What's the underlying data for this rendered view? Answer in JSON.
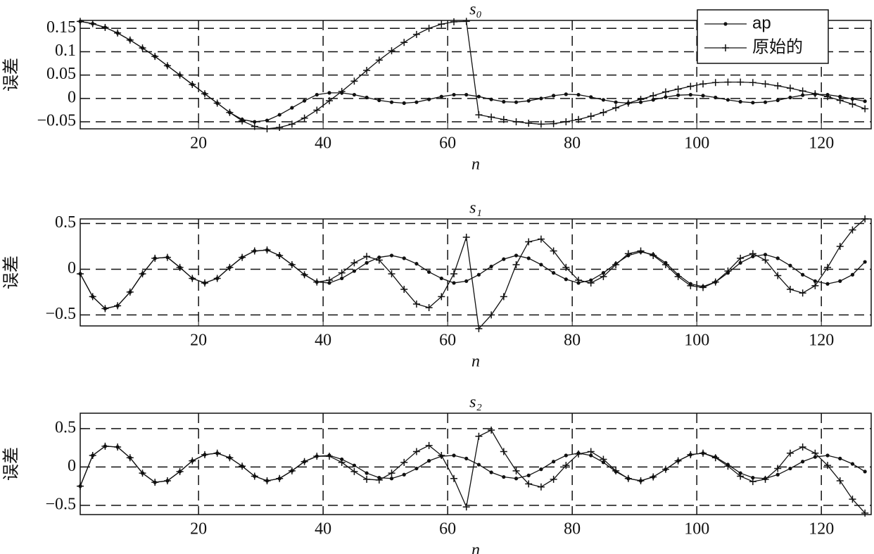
{
  "chart_data": [
    {
      "type": "line",
      "title": "s₀",
      "xlabel": "n",
      "ylabel": "误差",
      "legend": "upper right",
      "grid": true,
      "xlim": [
        1,
        128
      ],
      "ylim": [
        -0.065,
        0.167
      ],
      "xticks": [
        20,
        40,
        60,
        80,
        100,
        120
      ],
      "yticks": [
        {
          "value": -0.05,
          "label": "−0.05"
        },
        0,
        0.05,
        0.1,
        0.15
      ],
      "x": [
        1,
        3,
        5,
        7,
        9,
        11,
        13,
        15,
        17,
        19,
        21,
        23,
        25,
        27,
        29,
        31,
        33,
        35,
        37,
        39,
        41,
        43,
        45,
        47,
        49,
        51,
        53,
        55,
        57,
        59,
        61,
        63,
        65,
        67,
        69,
        71,
        73,
        75,
        77,
        79,
        81,
        83,
        85,
        87,
        89,
        91,
        93,
        95,
        97,
        99,
        101,
        103,
        105,
        107,
        109,
        111,
        113,
        115,
        117,
        119,
        121,
        123,
        125,
        127
      ],
      "series": [
        {
          "name": "ap",
          "color": "#111111",
          "marker": "dot",
          "values": [
            0.165,
            0.16,
            0.152,
            0.14,
            0.125,
            0.108,
            0.09,
            0.07,
            0.05,
            0.03,
            0.01,
            -0.01,
            -0.03,
            -0.045,
            -0.05,
            -0.047,
            -0.035,
            -0.02,
            -0.005,
            0.008,
            0.012,
            0.012,
            0.008,
            0.002,
            -0.004,
            -0.008,
            -0.01,
            -0.008,
            -0.002,
            0.004,
            0.008,
            0.008,
            0.004,
            -0.002,
            -0.007,
            -0.008,
            -0.005,
            0,
            0.006,
            0.009,
            0.008,
            0.003,
            -0.003,
            -0.008,
            -0.01,
            -0.008,
            -0.003,
            0.003,
            0.007,
            0.008,
            0.006,
            0.002,
            -0.003,
            -0.007,
            -0.009,
            -0.008,
            -0.004,
            0.002,
            0.007,
            0.009,
            0.008,
            0.004,
            -0.001,
            -0.006
          ]
        },
        {
          "name": "原始的",
          "color": "#111111",
          "marker": "plus",
          "values": [
            0.165,
            0.16,
            0.152,
            0.14,
            0.125,
            0.108,
            0.09,
            0.07,
            0.05,
            0.03,
            0.01,
            -0.01,
            -0.03,
            -0.048,
            -0.06,
            -0.065,
            -0.062,
            -0.055,
            -0.042,
            -0.025,
            -0.005,
            0.015,
            0.037,
            0.06,
            0.082,
            0.102,
            0.12,
            0.137,
            0.15,
            0.159,
            0.164,
            0.165,
            -0.035,
            -0.04,
            -0.045,
            -0.05,
            -0.053,
            -0.055,
            -0.054,
            -0.05,
            -0.045,
            -0.038,
            -0.03,
            -0.02,
            -0.01,
            -0.002,
            0.006,
            0.014,
            0.02,
            0.026,
            0.031,
            0.034,
            0.035,
            0.035,
            0.034,
            0.031,
            0.027,
            0.022,
            0.016,
            0.01,
            0.004,
            -0.004,
            -0.012,
            -0.022
          ]
        }
      ]
    },
    {
      "type": "line",
      "title": "s₁",
      "xlabel": "n",
      "ylabel": "误差",
      "grid": true,
      "xlim": [
        1,
        128
      ],
      "ylim": [
        -0.62,
        0.55
      ],
      "xticks": [
        20,
        40,
        60,
        80,
        100,
        120
      ],
      "yticks": [
        {
          "value": -0.5,
          "label": "−0.5"
        },
        0,
        0.5
      ],
      "x": [
        1,
        3,
        5,
        7,
        9,
        11,
        13,
        15,
        17,
        19,
        21,
        23,
        25,
        27,
        29,
        31,
        33,
        35,
        37,
        39,
        41,
        43,
        45,
        47,
        49,
        51,
        53,
        55,
        57,
        59,
        61,
        63,
        65,
        67,
        69,
        71,
        73,
        75,
        77,
        79,
        81,
        83,
        85,
        87,
        89,
        91,
        93,
        95,
        97,
        99,
        101,
        103,
        105,
        107,
        109,
        111,
        113,
        115,
        117,
        119,
        121,
        123,
        125,
        127
      ],
      "series": [
        {
          "color": "#111111",
          "marker": "dot",
          "values": [
            -0.05,
            -0.3,
            -0.43,
            -0.4,
            -0.25,
            -0.05,
            0.12,
            0.13,
            0.02,
            -0.1,
            -0.15,
            -0.1,
            0.02,
            0.13,
            0.2,
            0.21,
            0.15,
            0.05,
            -0.06,
            -0.14,
            -0.15,
            -0.1,
            -0.02,
            0.07,
            0.13,
            0.15,
            0.12,
            0.06,
            -0.03,
            -0.1,
            -0.15,
            -0.13,
            -0.06,
            0.03,
            0.11,
            0.15,
            0.12,
            0.05,
            -0.04,
            -0.11,
            -0.15,
            -0.12,
            -0.04,
            0.06,
            0.15,
            0.19,
            0.16,
            0.07,
            -0.06,
            -0.16,
            -0.19,
            -0.14,
            -0.04,
            0.07,
            0.14,
            0.16,
            0.12,
            0.04,
            -0.06,
            -0.13,
            -0.16,
            -0.13,
            -0.06,
            0.08
          ]
        },
        {
          "color": "#111111",
          "marker": "plus",
          "values": [
            -0.05,
            -0.3,
            -0.43,
            -0.4,
            -0.25,
            -0.05,
            0.12,
            0.13,
            0.02,
            -0.1,
            -0.15,
            -0.1,
            0.02,
            0.13,
            0.2,
            0.21,
            0.15,
            0.05,
            -0.06,
            -0.14,
            -0.12,
            -0.04,
            0.07,
            0.14,
            0.1,
            -0.05,
            -0.22,
            -0.38,
            -0.42,
            -0.3,
            -0.05,
            0.35,
            -0.65,
            -0.5,
            -0.3,
            0.05,
            0.3,
            0.33,
            0.2,
            0.02,
            -0.12,
            -0.15,
            -0.08,
            0.05,
            0.17,
            0.2,
            0.15,
            0.05,
            -0.08,
            -0.18,
            -0.2,
            -0.14,
            -0.02,
            0.12,
            0.17,
            0.1,
            -0.07,
            -0.22,
            -0.26,
            -0.18,
            0.02,
            0.25,
            0.43,
            0.55
          ]
        }
      ]
    },
    {
      "type": "line",
      "title": "s₂",
      "xlabel": "n",
      "ylabel": "误差",
      "grid": true,
      "xlim": [
        1,
        128
      ],
      "ylim": [
        -0.62,
        0.7
      ],
      "xticks": [
        20,
        40,
        60,
        80,
        100,
        120
      ],
      "yticks": [
        {
          "value": -0.5,
          "label": "−0.5"
        },
        0,
        0.5
      ],
      "x": [
        1,
        3,
        5,
        7,
        9,
        11,
        13,
        15,
        17,
        19,
        21,
        23,
        25,
        27,
        29,
        31,
        33,
        35,
        37,
        39,
        41,
        43,
        45,
        47,
        49,
        51,
        53,
        55,
        57,
        59,
        61,
        63,
        65,
        67,
        69,
        71,
        73,
        75,
        77,
        79,
        81,
        83,
        85,
        87,
        89,
        91,
        93,
        95,
        97,
        99,
        101,
        103,
        105,
        107,
        109,
        111,
        113,
        115,
        117,
        119,
        121,
        123,
        125,
        127
      ],
      "series": [
        {
          "color": "#111111",
          "marker": "dot",
          "values": [
            -0.25,
            0.15,
            0.27,
            0.26,
            0.12,
            -0.08,
            -0.2,
            -0.18,
            -0.06,
            0.08,
            0.16,
            0.18,
            0.12,
            0.01,
            -0.12,
            -0.18,
            -0.15,
            -0.05,
            0.07,
            0.14,
            0.15,
            0.1,
            0.02,
            -0.08,
            -0.14,
            -0.15,
            -0.1,
            -0.02,
            0.08,
            0.14,
            0.15,
            0.11,
            0.03,
            -0.07,
            -0.13,
            -0.15,
            -0.11,
            -0.03,
            0.07,
            0.15,
            0.18,
            0.15,
            0.06,
            -0.06,
            -0.15,
            -0.18,
            -0.13,
            -0.03,
            0.08,
            0.16,
            0.18,
            0.13,
            0.03,
            -0.08,
            -0.14,
            -0.15,
            -0.1,
            -0.02,
            0.07,
            0.13,
            0.15,
            0.11,
            0.04,
            -0.06
          ]
        },
        {
          "color": "#111111",
          "marker": "plus",
          "values": [
            -0.25,
            0.15,
            0.27,
            0.26,
            0.12,
            -0.08,
            -0.2,
            -0.18,
            -0.06,
            0.08,
            0.16,
            0.18,
            0.12,
            0.01,
            -0.12,
            -0.18,
            -0.15,
            -0.05,
            0.07,
            0.14,
            0.14,
            0.06,
            -0.06,
            -0.16,
            -0.17,
            -0.08,
            0.06,
            0.2,
            0.28,
            0.15,
            -0.15,
            -0.52,
            0.4,
            0.48,
            0.2,
            -0.05,
            -0.22,
            -0.26,
            -0.16,
            0.02,
            0.17,
            0.2,
            0.1,
            -0.05,
            -0.15,
            -0.18,
            -0.13,
            -0.03,
            0.08,
            0.16,
            0.18,
            0.12,
            0.01,
            -0.12,
            -0.19,
            -0.16,
            -0.02,
            0.18,
            0.26,
            0.18,
            0.02,
            -0.18,
            -0.42,
            -0.6
          ]
        }
      ]
    }
  ]
}
